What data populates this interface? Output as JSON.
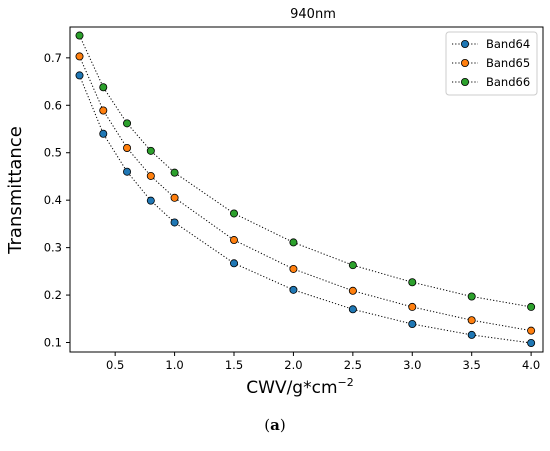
{
  "chart_data": {
    "type": "line",
    "title": "940nm",
    "xlabel": "CWV/g*cm",
    "xlabel_superscript": "−2",
    "ylabel": "Transmittance",
    "xlim": [
      0.12,
      4.1
    ],
    "ylim": [
      0.08,
      0.765
    ],
    "x_ticks": [
      "0.5",
      "1.0",
      "1.5",
      "2.0",
      "2.5",
      "3.0",
      "3.5",
      "4.0"
    ],
    "y_ticks": [
      "0.1",
      "0.2",
      "0.3",
      "0.4",
      "0.5",
      "0.6",
      "0.7"
    ],
    "grid": false,
    "legend_position": "top-right",
    "x": [
      0.2,
      0.4,
      0.6,
      0.8,
      1.0,
      1.5,
      2.0,
      2.5,
      3.0,
      3.5,
      4.0
    ],
    "series": [
      {
        "name": "Band64",
        "color": "#1f77b4",
        "values": [
          0.663,
          0.54,
          0.46,
          0.399,
          0.353,
          0.267,
          0.211,
          0.17,
          0.139,
          0.116,
          0.099
        ]
      },
      {
        "name": "Band65",
        "color": "#ff7f0e",
        "values": [
          0.703,
          0.589,
          0.51,
          0.451,
          0.405,
          0.316,
          0.255,
          0.209,
          0.175,
          0.147,
          0.125
        ]
      },
      {
        "name": "Band66",
        "color": "#2ca02c",
        "values": [
          0.747,
          0.638,
          0.562,
          0.504,
          0.458,
          0.372,
          0.311,
          0.263,
          0.227,
          0.197,
          0.175
        ]
      }
    ],
    "line_style": "dotted",
    "marker": "circle"
  },
  "caption": {
    "label": "a"
  }
}
